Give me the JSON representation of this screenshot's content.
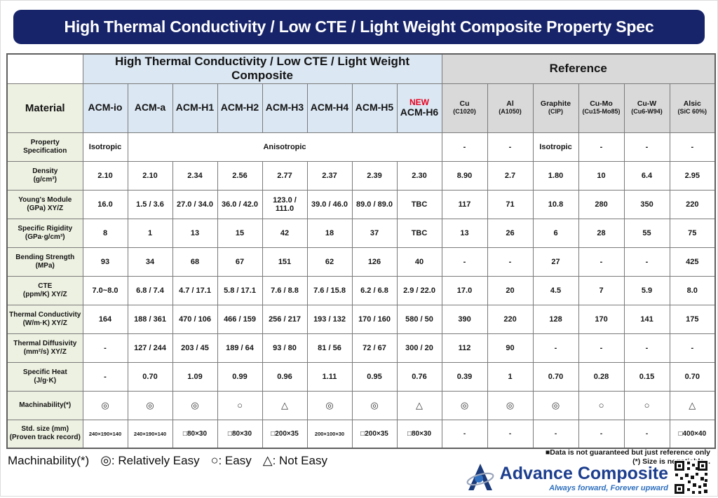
{
  "title": "High Thermal Conductivity / Low CTE / Light Weight Composite Property Spec",
  "colors": {
    "banner_navy": "#172469",
    "acm_header_blue": "#dbe7f3",
    "reference_header_gray": "#d9d9d9",
    "label_column_green": "#edf1e1",
    "new_badge_red": "#e8001e",
    "brand_blue": "#1c3e8e",
    "tagline_blue": "#2e6fbe"
  },
  "table": {
    "group_acm": "High Thermal Conductivity / Low CTE / Light Weight Composite",
    "group_ref": "Reference",
    "material_label": "Material",
    "materials": [
      {
        "name": "ACM-io"
      },
      {
        "name": "ACM-a"
      },
      {
        "name": "ACM-H1"
      },
      {
        "name": "ACM-H2"
      },
      {
        "name": "ACM-H3"
      },
      {
        "name": "ACM-H4"
      },
      {
        "name": "ACM-H5"
      },
      {
        "name": "ACM-H6",
        "badge": "NEW"
      },
      {
        "name": "Cu",
        "sub": "(C1020)"
      },
      {
        "name": "Al",
        "sub": "(A1050)"
      },
      {
        "name": "Graphite",
        "sub": "(CIP)"
      },
      {
        "name": "Cu-Mo",
        "sub": "(Cu15-Mo85)"
      },
      {
        "name": "Cu-W",
        "sub": "(Cu6-W94)"
      },
      {
        "name": "Alsic",
        "sub": "(SiC 60%)"
      }
    ],
    "rows": [
      {
        "label": "Property Specification",
        "cells": [
          "Isotropic",
          {
            "t": "Anisotropic",
            "span": 7
          },
          "-",
          "-",
          "Isotropic",
          "-",
          "-",
          "-"
        ]
      },
      {
        "label": "Density\n(g/cm³)",
        "cells": [
          "2.10",
          "2.10",
          "2.34",
          "2.56",
          "2.77",
          "2.37",
          "2.39",
          "2.30",
          "8.90",
          "2.7",
          "1.80",
          "10",
          "6.4",
          "2.95"
        ]
      },
      {
        "label": "Young's Module\n(GPa) XY/Z",
        "cells": [
          "16.0",
          "1.5 / 3.6",
          "27.0 / 34.0",
          "36.0 / 42.0",
          "123.0 / 111.0",
          "39.0 / 46.0",
          "89.0 / 89.0",
          "TBC",
          "117",
          "71",
          "10.8",
          "280",
          "350",
          "220"
        ]
      },
      {
        "label": "Specific Rigidity\n(GPa·g/cm³)",
        "cells": [
          "8",
          "1",
          "13",
          "15",
          "42",
          "18",
          "37",
          "TBC",
          "13",
          "26",
          "6",
          "28",
          "55",
          "75"
        ]
      },
      {
        "label": "Bending Strength\n(MPa)",
        "cells": [
          "93",
          "34",
          "68",
          "67",
          "151",
          "62",
          "126",
          "40",
          "-",
          "-",
          "27",
          "-",
          "-",
          "425"
        ]
      },
      {
        "label": "CTE\n(ppm/K) XY/Z",
        "cells": [
          "7.0~8.0",
          "6.8 / 7.4",
          "4.7 / 17.1",
          "5.8 / 17.1",
          "7.6 / 8.8",
          "7.6 / 15.8",
          "6.2 / 6.8",
          "2.9 / 22.0",
          "17.0",
          "20",
          "4.5",
          "7",
          "5.9",
          "8.0"
        ]
      },
      {
        "label": "Thermal Conductivity\n(W/m·K) XY/Z",
        "cells": [
          "164",
          "188 / 361",
          "470 / 106",
          "466 / 159",
          "256 / 217",
          "193 / 132",
          "170 / 160",
          "580 / 50",
          "390",
          "220",
          "128",
          "170",
          "141",
          "175"
        ]
      },
      {
        "label": "Thermal Diffusivity\n(mm²/s) XY/Z",
        "cells": [
          "-",
          "127 / 244",
          "203 / 45",
          "189 / 64",
          "93 / 80",
          "81 / 56",
          "72 / 67",
          "300 / 20",
          "112",
          "90",
          "-",
          "-",
          "-",
          "-"
        ]
      },
      {
        "label": "Specific Heat\n(J/g·K)",
        "cells": [
          "-",
          "0.70",
          "1.09",
          "0.99",
          "0.96",
          "1.11",
          "0.95",
          "0.76",
          "0.39",
          "1",
          "0.70",
          "0.28",
          "0.15",
          "0.70"
        ]
      },
      {
        "label": "Machinability(*)",
        "cls": "sym",
        "cells": [
          "◎",
          "◎",
          "◎",
          "○",
          "△",
          "◎",
          "◎",
          "△",
          "◎",
          "◎",
          "◎",
          "○",
          "○",
          "△"
        ]
      },
      {
        "label": "Std. size (mm)\n(Proven track record)",
        "cls": "stdsize",
        "cells": [
          "240×190×140",
          "240×190×140",
          "□80×30",
          "□80×30",
          "□200×35",
          "200×100×30",
          "□200×35",
          "□80×30",
          "-",
          "-",
          "-",
          "-",
          "-",
          "□400×40"
        ]
      }
    ]
  },
  "legend": {
    "prefix": "Machinability(*)",
    "items": [
      {
        "symbol": "◎",
        "text": ": Relatively Easy"
      },
      {
        "symbol": "○",
        "text": ": Easy"
      },
      {
        "symbol": "△",
        "text": ": Not Easy"
      }
    ]
  },
  "notes": {
    "line1": "■Data is not guaranteed but just reference only",
    "line2": "(*) Size is negotiable. ."
  },
  "brand": {
    "name": "Advance Composite",
    "tagline": "Always forward, Forever upward"
  }
}
